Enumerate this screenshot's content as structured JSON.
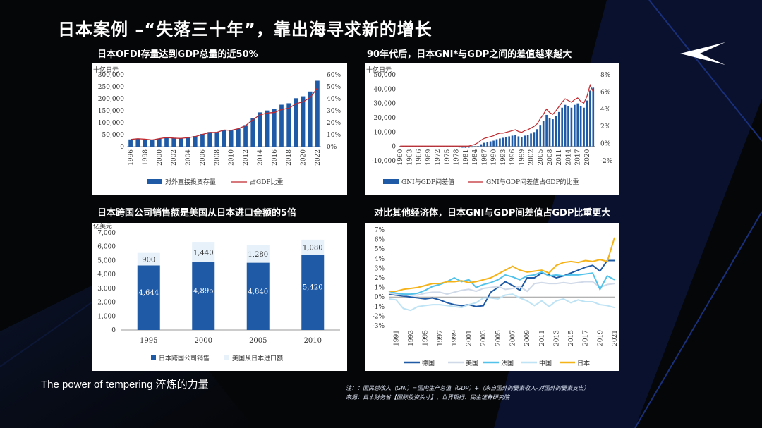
{
  "page": {
    "title": "日本案例 –“失落三十年”，靠出海寻求新的增长",
    "brand": "The power of tempering 淬炼的力量",
    "note": "注：：国民总收入（GNI）=国内生产总值（GDP）+（来自国外的要素收入–对国外的要素支出）",
    "source": "来源：日本财务省【国际投资头寸】、世界银行、民生证券研究院",
    "accent_color": "#1f5aa6",
    "line_color": "#c0282d"
  },
  "chart_data": [
    {
      "type": "bar",
      "title": "日本OFDI存量达到GDP总量的近50%",
      "ylabel": "十亿日元",
      "ylim": [
        0,
        300000
      ],
      "y2lim": [
        0,
        60
      ],
      "yticks": [
        "0",
        "50,000",
        "100,000",
        "150,000",
        "200,000",
        "250,000",
        "300,000"
      ],
      "y2ticks": [
        "0%",
        "10%",
        "20%",
        "30%",
        "40%",
        "50%",
        "60%"
      ],
      "xtick_labels": [
        "1996",
        "1998",
        "2000",
        "2002",
        "2004",
        "2006",
        "2008",
        "2010",
        "2012",
        "2014",
        "2016",
        "2018",
        "2020",
        "2022"
      ],
      "years": [
        1996,
        1997,
        1998,
        1999,
        2000,
        2001,
        2002,
        2003,
        2004,
        2005,
        2006,
        2007,
        2008,
        2009,
        2010,
        2011,
        2012,
        2013,
        2014,
        2015,
        2016,
        2017,
        2018,
        2019,
        2020,
        2021,
        2022
      ],
      "series": [
        {
          "name": "对外直接投资存量",
          "kind": "bar",
          "axis": "left",
          "values": [
            30000,
            33000,
            30000,
            27000,
            33000,
            40000,
            37000,
            35000,
            38000,
            44000,
            53000,
            61000,
            61000,
            68000,
            68000,
            75000,
            90000,
            118000,
            143000,
            151000,
            158000,
            175000,
            181000,
            202000,
            210000,
            230000,
            275000
          ]
        },
        {
          "name": "占GDP比重",
          "kind": "line",
          "axis": "right",
          "values": [
            6.0,
            6.6,
            6.2,
            5.6,
            6.7,
            7.6,
            7.1,
            6.9,
            7.5,
            8.4,
            10.2,
            11.8,
            11.9,
            13.9,
            13.6,
            15.0,
            17.5,
            22.5,
            26.5,
            28.1,
            28.5,
            31.0,
            32.0,
            35.7,
            37.5,
            41.0,
            49.0
          ]
        }
      ],
      "legend": "bottom"
    },
    {
      "type": "bar",
      "title": "90年代后，日本GNI*与GDP之间的差值越来越大",
      "ylabel": "十亿日元",
      "ylim": [
        -10000,
        50000
      ],
      "y2lim": [
        -2,
        8
      ],
      "yticks": [
        "-10,000",
        "0",
        "10,000",
        "20,000",
        "30,000",
        "40,000",
        "50,000"
      ],
      "y2ticks": [
        "-2%",
        "0%",
        "2%",
        "4%",
        "6%",
        "8%"
      ],
      "xtick_labels": [
        "1960",
        "1963",
        "1966",
        "1969",
        "1972",
        "1975",
        "1978",
        "1981",
        "1984",
        "1987",
        "1990",
        "1993",
        "1996",
        "1999",
        "2002",
        "2005",
        "2008",
        "2011",
        "2014",
        "2017",
        "2020"
      ],
      "years_start": 1960,
      "series": [
        {
          "name": "GNI与GDP间差值",
          "kind": "bar",
          "axis": "left",
          "values": [
            -10,
            -15,
            -20,
            -25,
            -30,
            -40,
            -50,
            -60,
            -70,
            -90,
            -110,
            -150,
            -200,
            -280,
            -350,
            -400,
            -450,
            -500,
            -600,
            -750,
            -900,
            -1000,
            -900,
            -700,
            -400,
            200,
            1500,
            2500,
            3000,
            3500,
            4000,
            5000,
            5500,
            6000,
            6500,
            7000,
            7500,
            8000,
            7000,
            6500,
            7500,
            8000,
            9000,
            10000,
            12000,
            15000,
            18000,
            22000,
            20000,
            19000,
            21000,
            24000,
            27000,
            29000,
            28000,
            27000,
            29000,
            30000,
            28000,
            27000,
            32000,
            39000,
            41000
          ]
        },
        {
          "name": "GNI与GDP间差值占GDP的比重",
          "kind": "line",
          "axis": "right",
          "values": [
            -0.3,
            -0.3,
            -0.3,
            -0.3,
            -0.3,
            -0.3,
            -0.3,
            -0.3,
            -0.3,
            -0.3,
            -0.3,
            -0.3,
            -0.3,
            -0.3,
            -0.3,
            -0.3,
            -0.3,
            -0.3,
            -0.3,
            -0.3,
            -0.3,
            -0.3,
            -0.3,
            -0.2,
            -0.1,
            0.1,
            0.4,
            0.6,
            0.7,
            0.8,
            0.9,
            1.1,
            1.2,
            1.2,
            1.3,
            1.4,
            1.5,
            1.6,
            1.4,
            1.3,
            1.5,
            1.6,
            1.8,
            2.0,
            2.3,
            2.9,
            3.4,
            4.0,
            3.6,
            3.4,
            3.8,
            4.3,
            4.8,
            5.2,
            5.0,
            4.8,
            5.1,
            5.3,
            4.9,
            4.7,
            5.5,
            6.8,
            6.0
          ]
        }
      ],
      "legend": "bottom"
    },
    {
      "type": "bar",
      "title": "日本跨国公司销售额是美国从日本进口金额的5倍",
      "ylabel": "亿美元",
      "ylim": [
        0,
        7000
      ],
      "yticks": [
        "0",
        "1,000",
        "2,000",
        "3,000",
        "4,000",
        "5,000",
        "6,000",
        "7,000"
      ],
      "categories": [
        "1995",
        "2000",
        "2005",
        "2010"
      ],
      "stacked": true,
      "series": [
        {
          "name": "日本跨国公司销售",
          "values": [
            4644,
            4895,
            4840,
            5420
          ],
          "labels": [
            "4,644",
            "4,895",
            "4,840",
            "5,420"
          ]
        },
        {
          "name": "美国从日本进口额",
          "values": [
            900,
            1440,
            1280,
            1080
          ],
          "labels": [
            "900",
            "1,440",
            "1,280",
            "1,080"
          ]
        }
      ],
      "legend": "bottom"
    },
    {
      "type": "line",
      "title": "对比其他经济体，日本GNI与GDP间差值占GDP比重更大",
      "ylim": [
        -3,
        7
      ],
      "yticks": [
        "-3%",
        "-2%",
        "-1%",
        "0%",
        "1%",
        "2%",
        "3%",
        "4%",
        "5%",
        "6%",
        "7%"
      ],
      "xtick_labels": [
        "1991",
        "1993",
        "1995",
        "1997",
        "1999",
        "2001",
        "2003",
        "2005",
        "2007",
        "2009",
        "2011",
        "2013",
        "2015",
        "2017",
        "2019",
        "2021"
      ],
      "years_start": 1990,
      "series": [
        {
          "name": "德国",
          "color": "#1f5aa6",
          "values": [
            0.3,
            0.2,
            0.1,
            0.0,
            -0.1,
            -0.2,
            -0.1,
            -0.3,
            -0.6,
            -0.8,
            -0.9,
            -0.8,
            -1.0,
            -0.9,
            0.5,
            1.0,
            1.6,
            1.2,
            0.7,
            2.0,
            2.0,
            2.5,
            2.3,
            2.0,
            2.2,
            2.5,
            2.8,
            3.1,
            3.3,
            2.7,
            3.8,
            3.8
          ]
        },
        {
          "name": "美国",
          "color": "#cfd9e8",
          "values": [
            0.4,
            0.3,
            0.2,
            0.2,
            0.2,
            0.4,
            0.5,
            0.5,
            0.3,
            0.5,
            0.7,
            0.8,
            0.6,
            0.9,
            1.0,
            1.1,
            0.8,
            0.9,
            1.1,
            0.6,
            1.4,
            1.5,
            1.4,
            1.4,
            1.5,
            1.4,
            1.5,
            1.6,
            1.6,
            1.0,
            1.3,
            1.4
          ]
        },
        {
          "name": "法国",
          "color": "#52c2ea",
          "values": [
            0.6,
            0.4,
            0.3,
            0.3,
            0.4,
            0.7,
            1.1,
            1.3,
            1.6,
            2.0,
            1.6,
            1.8,
            1.0,
            1.3,
            1.5,
            1.8,
            2.3,
            2.1,
            1.8,
            2.2,
            2.3,
            2.6,
            2.2,
            2.3,
            2.2,
            2.3,
            2.3,
            2.4,
            2.5,
            0.8,
            2.2,
            1.8
          ]
        },
        {
          "name": "中国",
          "color": "#bde3f5",
          "values": [
            -0.2,
            -0.3,
            -1.2,
            -1.4,
            -1.0,
            -0.9,
            -0.8,
            -0.8,
            -0.9,
            -1.0,
            -1.1,
            -0.8,
            -0.6,
            -0.1,
            -0.1,
            -0.2,
            0.2,
            0.3,
            -0.1,
            -0.4,
            -0.9,
            -0.4,
            -1.0,
            -0.4,
            -0.2,
            -0.6,
            -0.3,
            -0.5,
            -0.5,
            -0.8,
            -0.9,
            -1.1
          ]
        },
        {
          "name": "日本",
          "color": "#f6b318",
          "values": [
            0.6,
            0.6,
            0.8,
            0.9,
            1.0,
            1.2,
            1.4,
            1.4,
            1.6,
            1.6,
            1.7,
            1.5,
            1.6,
            1.8,
            2.0,
            2.4,
            2.8,
            3.2,
            2.8,
            2.6,
            2.7,
            2.8,
            2.5,
            3.3,
            3.6,
            3.7,
            3.6,
            3.8,
            3.7,
            3.9,
            3.7,
            6.2
          ]
        }
      ],
      "legend": "bottom"
    }
  ]
}
